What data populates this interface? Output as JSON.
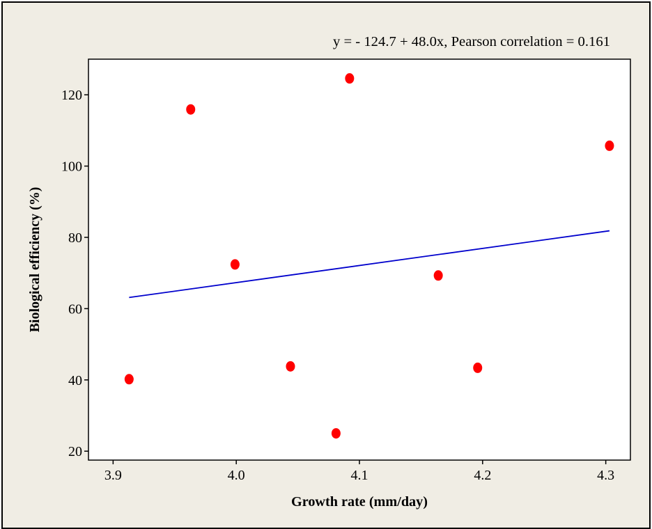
{
  "chart_data": {
    "type": "scatter",
    "title": "",
    "annotation": "y = - 124.7 + 48.0x, Pearson correlation = 0.161",
    "xlabel": "Growth rate (mm/day)",
    "ylabel": "Biological efficiency (%)",
    "xlim": [
      3.88,
      4.32
    ],
    "ylim": [
      17.5,
      130
    ],
    "x_ticks": [
      3.9,
      4.0,
      4.1,
      4.2,
      4.3
    ],
    "x_tick_labels": [
      "3.9",
      "4.0",
      "4.1",
      "4.2",
      "4.3"
    ],
    "y_ticks": [
      20,
      40,
      60,
      80,
      100,
      120
    ],
    "y_tick_labels": [
      "20",
      "40",
      "60",
      "80",
      "100",
      "120"
    ],
    "grid": false,
    "series": [
      {
        "kind": "scatter",
        "color": "#ff0000",
        "points": [
          {
            "x": 3.913,
            "y": 40.2
          },
          {
            "x": 3.963,
            "y": 115.9
          },
          {
            "x": 3.999,
            "y": 72.4
          },
          {
            "x": 4.044,
            "y": 43.8
          },
          {
            "x": 4.081,
            "y": 25.0
          },
          {
            "x": 4.092,
            "y": 124.6
          },
          {
            "x": 4.164,
            "y": 69.3
          },
          {
            "x": 4.196,
            "y": 43.4
          },
          {
            "x": 4.303,
            "y": 105.7
          }
        ]
      },
      {
        "kind": "line",
        "color": "#0000cc",
        "intercept": -124.7,
        "slope": 48.0,
        "x_range": [
          3.913,
          4.303
        ]
      }
    ]
  }
}
